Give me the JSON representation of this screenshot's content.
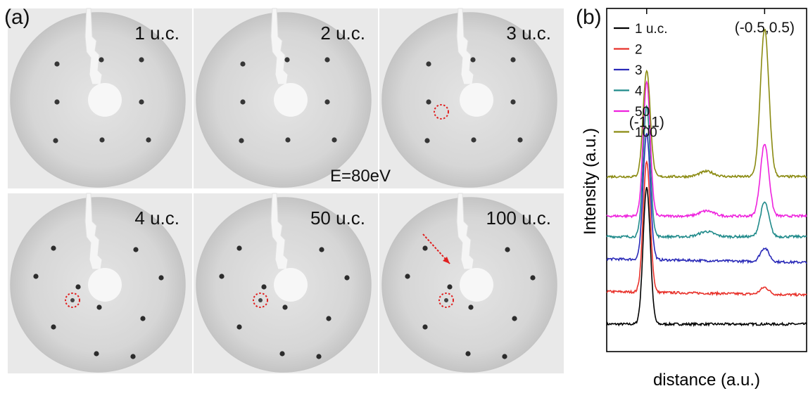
{
  "figure": {
    "panel_a": {
      "label": "(a)",
      "energy_label": "E=80eV",
      "images": [
        {
          "caption": "1 u.c.",
          "marked_spot": false,
          "arrow": false
        },
        {
          "caption": "2 u.c.",
          "marked_spot": false,
          "arrow": false
        },
        {
          "caption": "3 u.c.",
          "marked_spot": true,
          "arrow": false
        },
        {
          "caption": "4 u.c.",
          "marked_spot": true,
          "arrow": false
        },
        {
          "caption": "50 u.c.",
          "marked_spot": true,
          "arrow": false
        },
        {
          "caption": "100 u.c.",
          "marked_spot": true,
          "arrow": true
        }
      ],
      "colors": {
        "background": "#e9e9e9",
        "screen": "#cfcfcf",
        "spot": "#1a1a1a",
        "marker": "#e02020"
      }
    },
    "panel_b": {
      "label": "(b)"
    }
  },
  "chart_data": {
    "type": "line",
    "xlabel": "distance (a.u.)",
    "ylabel": "Intensity (a.u.)",
    "xlim": [
      0,
      1
    ],
    "ylim": [
      0,
      1
    ],
    "grid": false,
    "legend_position": "top-left",
    "annotations": [
      {
        "text": "(-1,1)",
        "x": 0.2,
        "y": 0.655
      },
      {
        "text": "(-0.5,0.5)",
        "x": 0.79,
        "y": 0.93
      }
    ],
    "series": [
      {
        "name": "1 u.c.",
        "color": "#000000",
        "baseline": 0.08,
        "peak1": 0.4,
        "peak2": 0.0
      },
      {
        "name": "2",
        "color": "#e8312a",
        "baseline": 0.17,
        "peak1": 0.38,
        "peak2": 0.02
      },
      {
        "name": "3",
        "color": "#2a2ab8",
        "baseline": 0.265,
        "peak1": 0.37,
        "peak2": 0.04
      },
      {
        "name": "4",
        "color": "#1f8a8a",
        "baseline": 0.335,
        "peak1": 0.38,
        "peak2": 0.1
      },
      {
        "name": "50",
        "color": "#ee22dd",
        "baseline": 0.395,
        "peak1": 0.39,
        "peak2": 0.21
      },
      {
        "name": "100",
        "color": "#8a8a10",
        "baseline": 0.51,
        "peak1": 0.31,
        "peak2": 0.43
      }
    ]
  }
}
